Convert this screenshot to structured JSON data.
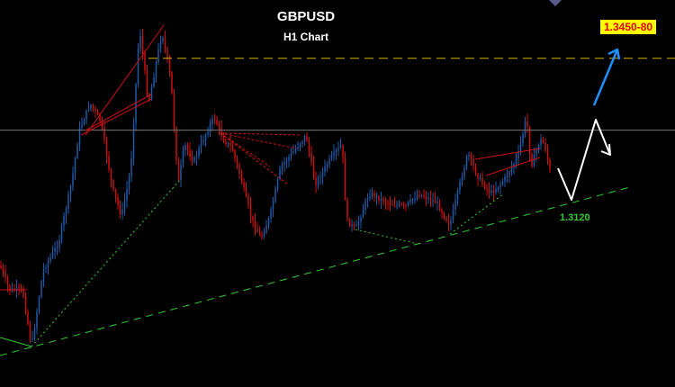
{
  "chart_data": {
    "type": "candlestick",
    "title": "GBPUSD",
    "subtitle": "H1 Chart",
    "y_range": [
      1.2935,
      1.35
    ],
    "target_label": "1.3450-80",
    "support_label": "1.3120",
    "levels": {
      "resistance": 1.3415,
      "current": 1.331
    },
    "colors": {
      "bull": "#1e5aa8",
      "bear": "#cc1111",
      "resistance": "#d4b200",
      "support": "#33cc33",
      "current": "#777777",
      "pattern": "#cc1111",
      "forecast": "#ffffff",
      "target_arrow": "#1e90ff",
      "background": "#000000"
    },
    "grid": false
  }
}
